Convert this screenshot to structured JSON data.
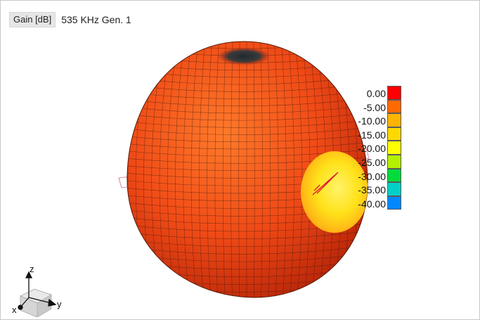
{
  "header": {
    "gain_label": "Gain [dB]",
    "subtitle": "535 KHz Gen. 1"
  },
  "legend": {
    "items": [
      {
        "label": "0.00",
        "color": "#ff0000"
      },
      {
        "label": "-5.00",
        "color": "#ff6a00"
      },
      {
        "label": "-10.00",
        "color": "#ffb400"
      },
      {
        "label": "-15.00",
        "color": "#ffd800"
      },
      {
        "label": "-20.00",
        "color": "#ffff00"
      },
      {
        "label": "-25.00",
        "color": "#b4f000"
      },
      {
        "label": "-30.00",
        "color": "#00dc3c"
      },
      {
        "label": "-35.00",
        "color": "#00d0c8"
      },
      {
        "label": "-40.00",
        "color": "#0088ff"
      }
    ]
  },
  "axes": {
    "z_label": "z",
    "y_label": "y",
    "x_label": "x"
  },
  "colors": {
    "surface_main": "#f04a16",
    "surface_light": "#ff7a2a",
    "surface_dark": "#c22a0a",
    "notch": "#ffef2a",
    "mesh": "#3a1a10",
    "antenna": "#e0192e"
  }
}
